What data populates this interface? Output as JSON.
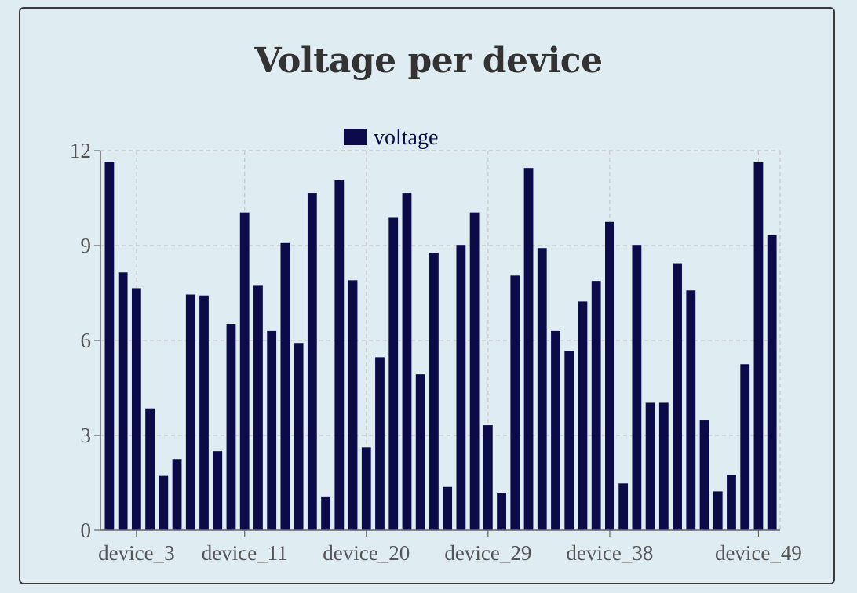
{
  "chart_data": {
    "type": "bar",
    "title": "Voltage per device",
    "xlabel": "",
    "ylabel": "",
    "legend": {
      "label": "voltage",
      "position": "top"
    },
    "color": "#0b0b4a",
    "grid": true,
    "ylim": [
      0,
      12
    ],
    "yticks": [
      0,
      3,
      6,
      9,
      12
    ],
    "xtick_labels": [
      "device_3",
      "device_11",
      "device_20",
      "device_29",
      "device_38",
      "device_49"
    ],
    "series": [
      {
        "name": "voltage",
        "values": [
          11.65,
          8.15,
          7.65,
          3.85,
          1.72,
          2.25,
          7.45,
          7.42,
          2.5,
          6.52,
          10.05,
          7.75,
          6.3,
          9.08,
          5.92,
          10.66,
          1.07,
          11.08,
          7.9,
          2.62,
          5.47,
          9.88,
          10.66,
          4.93,
          8.77,
          1.37,
          9.02,
          10.05,
          3.32,
          1.19,
          8.05,
          11.45,
          8.92,
          6.3,
          5.66,
          7.23,
          7.88,
          9.75,
          1.48,
          9.02,
          4.03,
          4.03,
          8.44,
          7.58,
          3.47,
          1.23,
          1.75,
          5.25,
          11.63,
          9.33
        ]
      }
    ]
  }
}
